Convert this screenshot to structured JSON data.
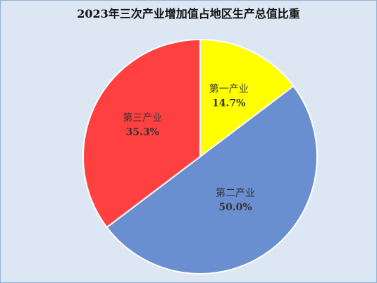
{
  "chart_data": {
    "type": "pie",
    "title": "2023年三次产业增加值占地区生产总值比重",
    "slices": [
      {
        "label": "第一产业",
        "value": 14.7,
        "display": "14.7%",
        "color": "#ffff00"
      },
      {
        "label": "第二产业",
        "value": 50.0,
        "display": "50.0%",
        "color": "#6a8fd0"
      },
      {
        "label": "第三产业",
        "value": 35.3,
        "display": "35.3%",
        "color": "#ff4040"
      }
    ],
    "legend": "none"
  }
}
